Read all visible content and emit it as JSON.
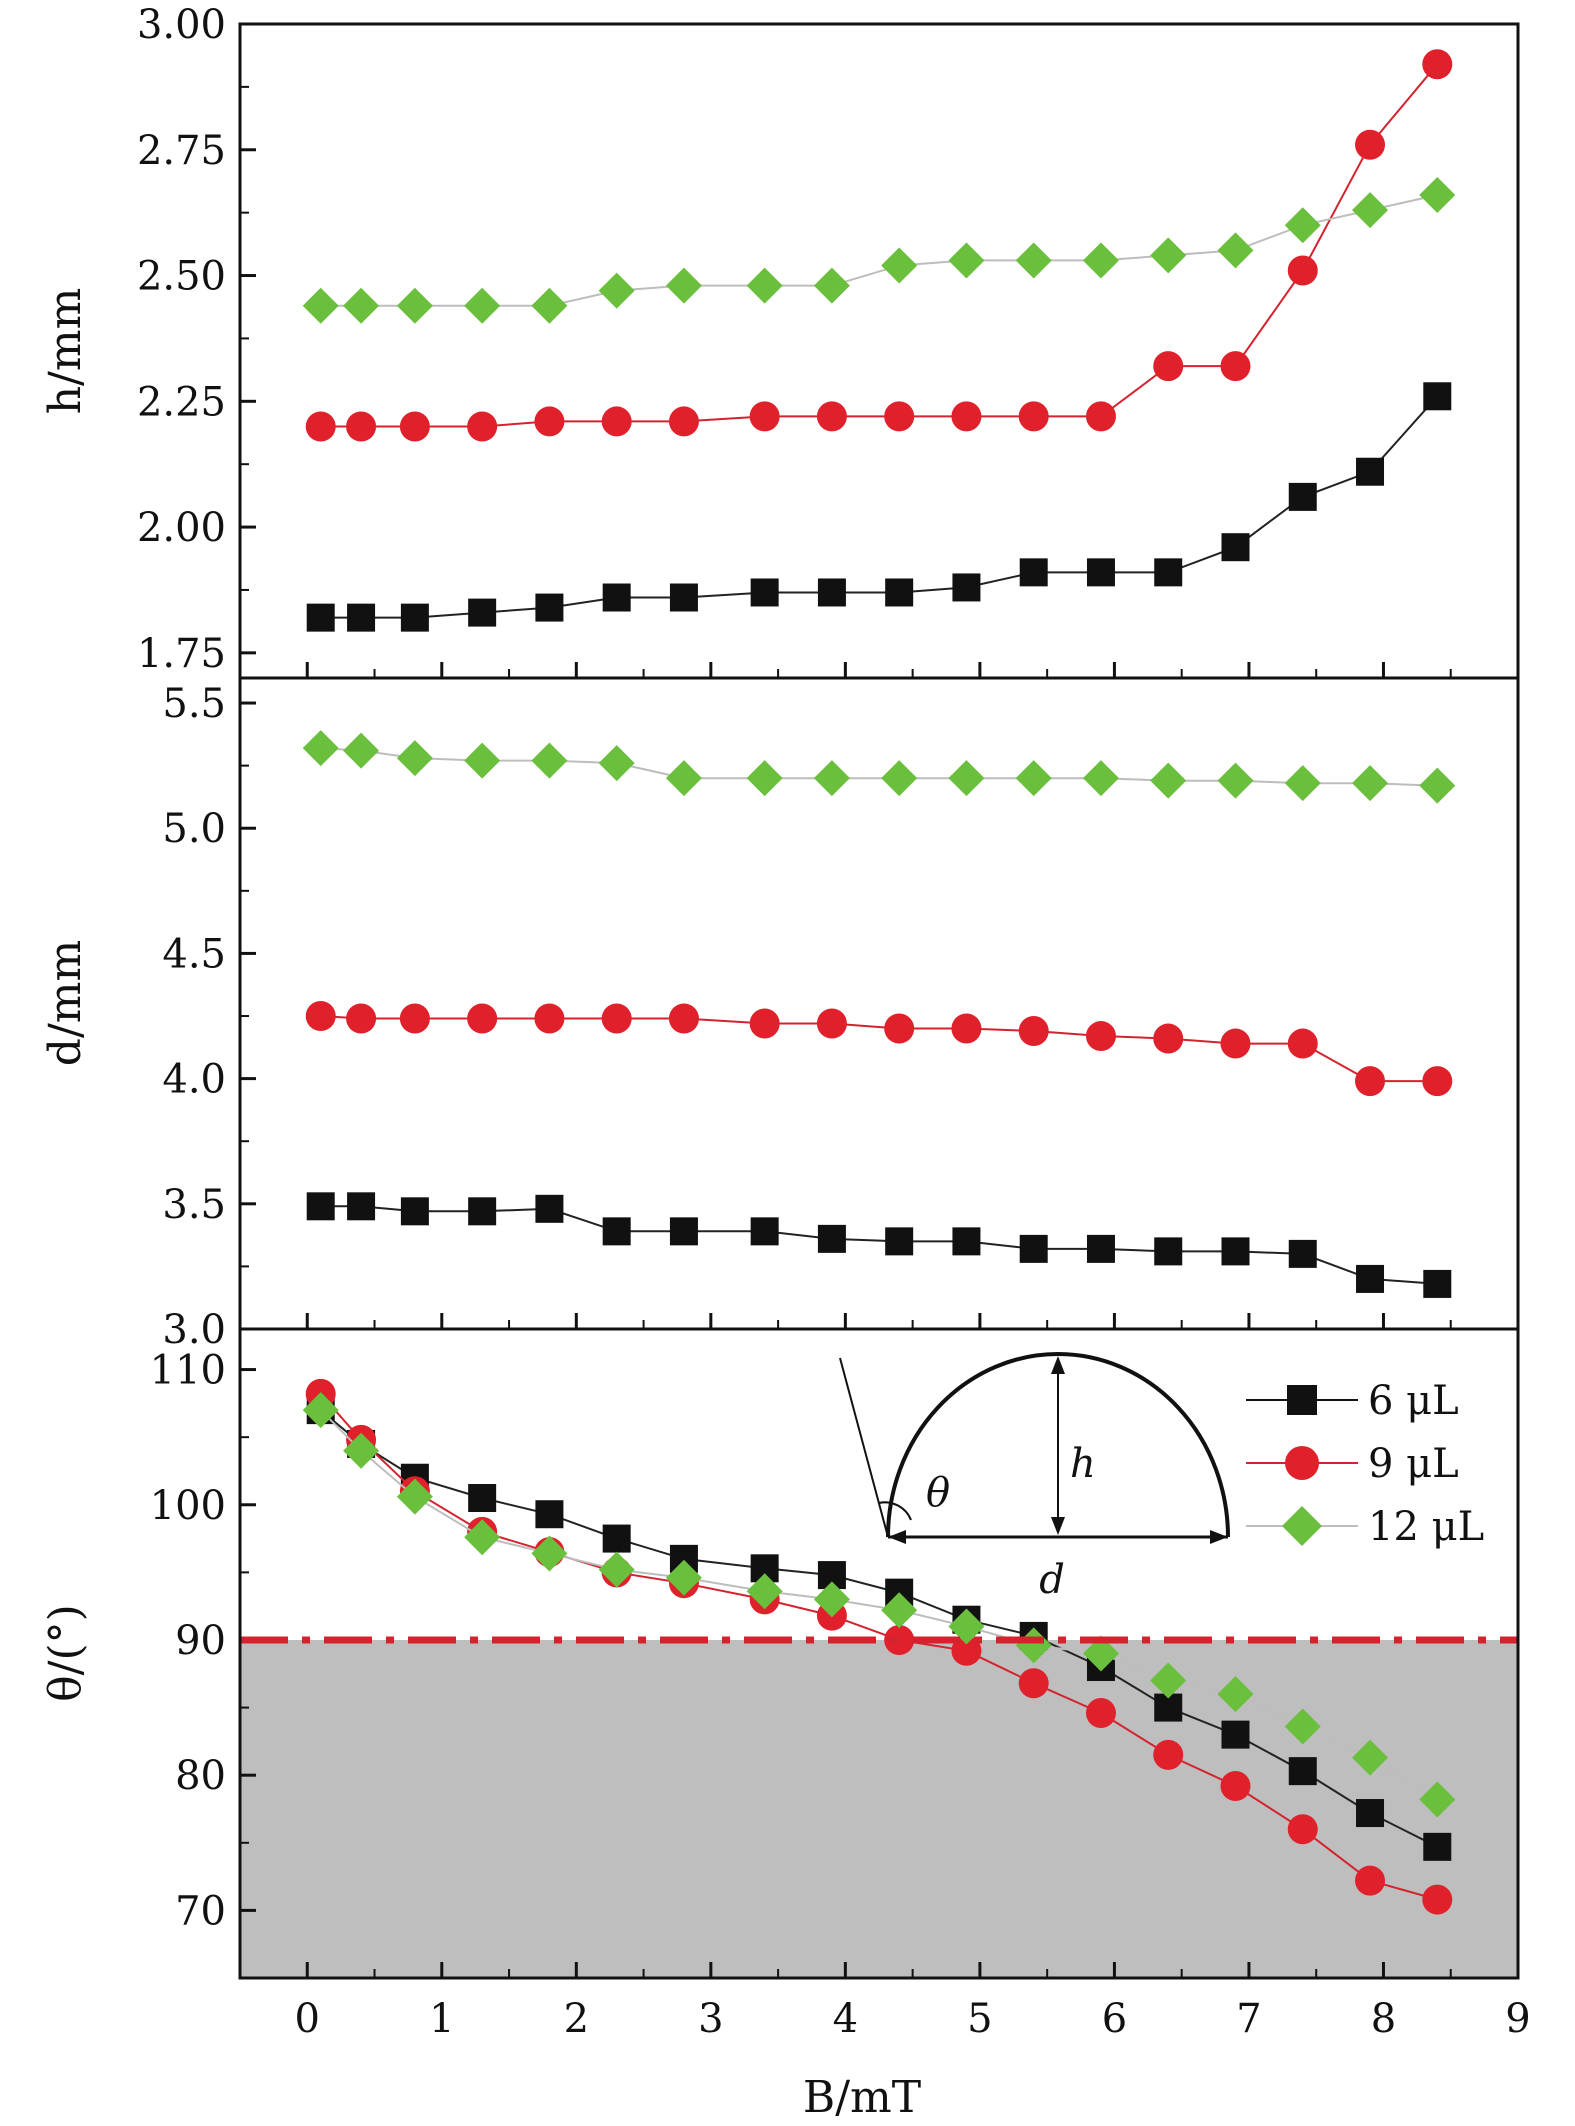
{
  "colors": {
    "s6": "#111111",
    "s9": "#e0212b",
    "s12": "#6abf3c",
    "shade": "#bebebe",
    "ref_line": "#d4232e"
  },
  "chart_data": [
    {
      "type": "line",
      "id": "h",
      "ylabel": "h/mm",
      "ylim": [
        1.7,
        3.0
      ],
      "yticks": [
        1.75,
        2.0,
        2.25,
        2.5,
        2.75,
        3.0
      ],
      "ytick_labels": [
        "1.75",
        "2.00",
        "2.25",
        "2.50",
        "2.75",
        "3.00"
      ],
      "xlim": [
        -0.5,
        9
      ],
      "x": [
        0.1,
        0.4,
        0.8,
        1.3,
        1.8,
        2.3,
        2.8,
        3.4,
        3.9,
        4.4,
        4.9,
        5.4,
        5.9,
        6.4,
        6.9,
        7.4,
        7.9,
        8.4
      ],
      "series": [
        {
          "name": "6 μL",
          "marker": "square",
          "values": [
            1.82,
            1.82,
            1.82,
            1.83,
            1.84,
            1.86,
            1.86,
            1.87,
            1.87,
            1.87,
            1.88,
            1.91,
            1.91,
            1.91,
            1.96,
            2.06,
            2.11,
            2.26
          ]
        },
        {
          "name": "9 μL",
          "marker": "circle",
          "values": [
            2.2,
            2.2,
            2.2,
            2.2,
            2.21,
            2.21,
            2.21,
            2.22,
            2.22,
            2.22,
            2.22,
            2.22,
            2.22,
            2.32,
            2.32,
            2.51,
            2.76,
            2.92
          ]
        },
        {
          "name": "12 μL",
          "marker": "diamond",
          "values": [
            2.44,
            2.44,
            2.44,
            2.44,
            2.44,
            2.47,
            2.48,
            2.48,
            2.48,
            2.52,
            2.53,
            2.53,
            2.53,
            2.54,
            2.55,
            2.6,
            2.63,
            2.66
          ]
        }
      ]
    },
    {
      "type": "line",
      "id": "d",
      "ylabel": "d/mm",
      "ylim": [
        3.0,
        5.6
      ],
      "yticks": [
        3.0,
        3.5,
        4.0,
        4.5,
        5.0,
        5.5
      ],
      "ytick_labels": [
        "3.0",
        "3.5",
        "4.0",
        "4.5",
        "5.0",
        "5.5"
      ],
      "xlim": [
        -0.5,
        9
      ],
      "x": [
        0.1,
        0.4,
        0.8,
        1.3,
        1.8,
        2.3,
        2.8,
        3.4,
        3.9,
        4.4,
        4.9,
        5.4,
        5.9,
        6.4,
        6.9,
        7.4,
        7.9,
        8.4
      ],
      "series": [
        {
          "name": "6 μL",
          "marker": "square",
          "values": [
            3.49,
            3.49,
            3.47,
            3.47,
            3.48,
            3.39,
            3.39,
            3.39,
            3.36,
            3.35,
            3.35,
            3.32,
            3.32,
            3.31,
            3.31,
            3.3,
            3.2,
            3.18
          ]
        },
        {
          "name": "9 μL",
          "marker": "circle",
          "values": [
            4.25,
            4.24,
            4.24,
            4.24,
            4.24,
            4.24,
            4.24,
            4.22,
            4.22,
            4.2,
            4.2,
            4.19,
            4.17,
            4.16,
            4.14,
            4.14,
            3.99,
            3.99
          ]
        },
        {
          "name": "12 μL",
          "marker": "diamond",
          "values": [
            5.32,
            5.31,
            5.28,
            5.27,
            5.27,
            5.26,
            5.2,
            5.2,
            5.2,
            5.2,
            5.2,
            5.2,
            5.2,
            5.19,
            5.19,
            5.18,
            5.18,
            5.17
          ]
        }
      ]
    },
    {
      "type": "line",
      "id": "theta",
      "ylabel": "θ/(°)",
      "xlabel": "B/mT",
      "ylim": [
        65,
        113
      ],
      "yticks": [
        70,
        80,
        90,
        100,
        110
      ],
      "ytick_labels": [
        "70",
        "80",
        "90",
        "100",
        "110"
      ],
      "xlim": [
        -0.5,
        9
      ],
      "xticks": [
        0,
        1,
        2,
        3,
        4,
        5,
        6,
        7,
        8,
        9
      ],
      "xtick_labels": [
        "0",
        "1",
        "2",
        "3",
        "4",
        "5",
        "6",
        "7",
        "8",
        "9"
      ],
      "reference_line": 90,
      "shaded_below": 90,
      "x": [
        0.1,
        0.4,
        0.8,
        1.3,
        1.8,
        2.3,
        2.8,
        3.4,
        3.9,
        4.4,
        4.9,
        5.4,
        5.9,
        6.4,
        6.9,
        7.4,
        7.9,
        8.4
      ],
      "series": [
        {
          "name": "6 μL",
          "marker": "square",
          "values": [
            107.0,
            104.5,
            102.0,
            100.5,
            99.3,
            97.5,
            96.0,
            95.3,
            94.8,
            93.5,
            91.5,
            90.3,
            88.0,
            85.0,
            83.0,
            80.3,
            77.2,
            74.7
          ]
        },
        {
          "name": "9 μL",
          "marker": "circle",
          "values": [
            108.2,
            104.8,
            101.0,
            98.0,
            96.5,
            95.0,
            94.2,
            93.0,
            91.8,
            90.0,
            89.2,
            86.8,
            84.6,
            81.5,
            79.2,
            76.0,
            72.2,
            70.8
          ]
        },
        {
          "name": "12 μL",
          "marker": "diamond",
          "values": [
            107.0,
            104.0,
            100.6,
            97.6,
            96.4,
            95.2,
            94.6,
            93.6,
            93.0,
            92.2,
            91.0,
            89.6,
            89.0,
            87.0,
            86.0,
            83.6,
            81.3,
            78.2
          ]
        }
      ]
    }
  ],
  "legend": [
    "6 μL",
    "9 μL",
    "12 μL"
  ],
  "sketch": {
    "h": "h",
    "d": "d",
    "theta": "θ"
  }
}
